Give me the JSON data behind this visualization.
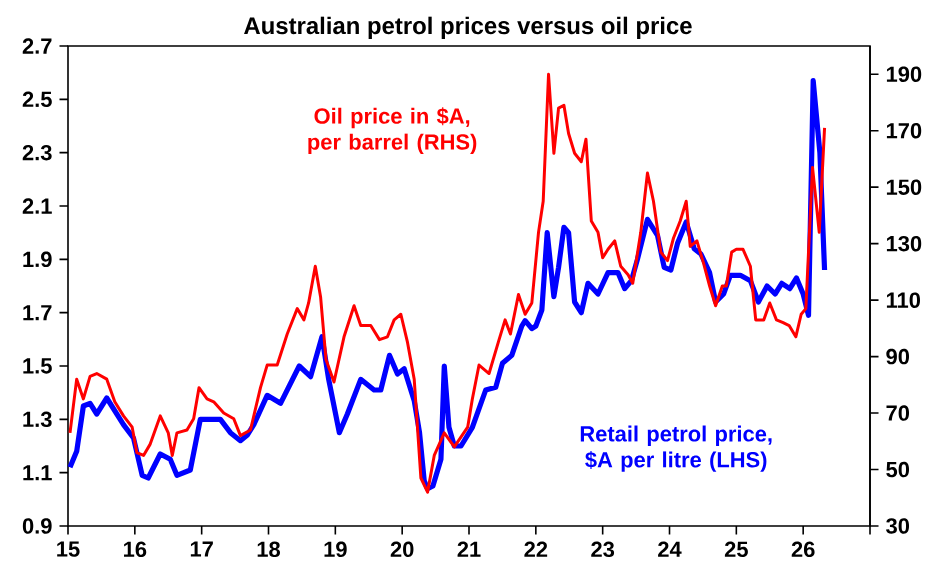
{
  "chart_data": {
    "type": "line",
    "title": "Australian petrol prices versus oil price",
    "xlim": [
      15,
      27
    ],
    "xticks": [
      15,
      16,
      17,
      18,
      19,
      20,
      21,
      22,
      23,
      24,
      25,
      26,
      {
        "value": 27,
        "label": null
      }
    ],
    "ylim": [
      0.9,
      2.7
    ],
    "yticks": [
      0.9,
      1.1,
      1.3,
      1.5,
      1.7,
      1.9,
      2.1,
      2.3,
      2.5,
      2.7
    ],
    "y2lim": [
      30,
      200
    ],
    "y2ticks": [
      30,
      50,
      70,
      90,
      110,
      130,
      150,
      170,
      190
    ],
    "grid": false,
    "series": [
      {
        "name": "Retail petrol price, $A per litre (LHS)",
        "color": "#0000ff",
        "axis": "y",
        "x": [
          15.03,
          15.13,
          15.23,
          15.33,
          15.43,
          15.58,
          15.83,
          15.98,
          16.11,
          16.2,
          16.38,
          16.53,
          16.63,
          16.83,
          16.98,
          17.18,
          17.28,
          17.43,
          17.58,
          17.68,
          17.78,
          17.98,
          18.18,
          18.46,
          18.63,
          18.8,
          18.9,
          19.06,
          19.18,
          19.38,
          19.58,
          19.68,
          19.81,
          19.93,
          20.03,
          20.18,
          20.26,
          20.33,
          20.38,
          20.46,
          20.58,
          20.63,
          20.7,
          20.78,
          20.88,
          21.05,
          21.25,
          21.4,
          21.5,
          21.64,
          21.79,
          21.84,
          21.94,
          22.0,
          22.09,
          22.17,
          22.27,
          22.34,
          22.42,
          22.49,
          22.58,
          22.68,
          22.78,
          22.93,
          23.08,
          23.23,
          23.33,
          23.43,
          23.52,
          23.67,
          23.82,
          23.92,
          24.02,
          24.12,
          24.25,
          24.37,
          24.47,
          24.6,
          24.69,
          24.81,
          24.91,
          25.06,
          25.21,
          25.33,
          25.46,
          25.58,
          25.68,
          25.8,
          25.9,
          26.0,
          26.08,
          26.15,
          26.25,
          26.32
        ],
        "values": [
          1.12,
          1.18,
          1.35,
          1.36,
          1.32,
          1.38,
          1.28,
          1.23,
          1.09,
          1.08,
          1.17,
          1.15,
          1.09,
          1.11,
          1.3,
          1.3,
          1.3,
          1.25,
          1.22,
          1.24,
          1.28,
          1.39,
          1.36,
          1.5,
          1.46,
          1.61,
          1.45,
          1.25,
          1.32,
          1.45,
          1.41,
          1.41,
          1.54,
          1.47,
          1.49,
          1.37,
          1.25,
          1.07,
          1.04,
          1.05,
          1.15,
          1.5,
          1.27,
          1.2,
          1.2,
          1.27,
          1.41,
          1.42,
          1.51,
          1.54,
          1.65,
          1.67,
          1.64,
          1.65,
          1.71,
          2.0,
          1.76,
          1.87,
          2.02,
          2.0,
          1.74,
          1.7,
          1.81,
          1.77,
          1.85,
          1.85,
          1.79,
          1.82,
          1.9,
          2.05,
          1.99,
          1.87,
          1.86,
          1.96,
          2.04,
          1.94,
          1.92,
          1.85,
          1.74,
          1.77,
          1.84,
          1.84,
          1.82,
          1.74,
          1.8,
          1.77,
          1.81,
          1.79,
          1.83,
          1.77,
          1.69,
          2.57,
          2.3,
          1.86
        ]
      },
      {
        "name": "Oil price in $A, per barrel (RHS)",
        "color": "#ff0000",
        "axis": "y2",
        "x": [
          15.03,
          15.13,
          15.23,
          15.33,
          15.43,
          15.58,
          15.7,
          15.83,
          15.96,
          16.03,
          16.13,
          16.23,
          16.38,
          16.5,
          16.56,
          16.63,
          16.78,
          16.88,
          16.96,
          17.08,
          17.18,
          17.33,
          17.48,
          17.58,
          17.73,
          17.88,
          17.98,
          18.13,
          18.28,
          18.43,
          18.53,
          18.6,
          18.7,
          18.78,
          18.86,
          18.98,
          19.13,
          19.28,
          19.38,
          19.53,
          19.66,
          19.78,
          19.88,
          19.98,
          20.08,
          20.18,
          20.28,
          20.38,
          20.48,
          20.63,
          20.78,
          20.98,
          21.05,
          21.15,
          21.3,
          21.45,
          21.54,
          21.62,
          21.74,
          21.84,
          21.94,
          22.04,
          22.11,
          22.19,
          22.27,
          22.34,
          22.42,
          22.49,
          22.58,
          22.68,
          22.75,
          22.83,
          22.93,
          23.0,
          23.08,
          23.18,
          23.27,
          23.38,
          23.45,
          23.57,
          23.67,
          23.76,
          23.87,
          23.97,
          24.06,
          24.16,
          24.25,
          24.31,
          24.41,
          24.51,
          24.6,
          24.69,
          24.79,
          24.85,
          24.93,
          25.0,
          25.1,
          25.21,
          25.29,
          25.41,
          25.5,
          25.6,
          25.7,
          25.79,
          25.89,
          25.97,
          26.04,
          26.14,
          26.24,
          26.32
        ],
        "values": [
          63,
          82,
          75,
          83,
          84,
          82,
          74,
          69,
          65,
          56,
          55,
          59,
          69,
          63,
          55,
          63,
          64,
          68,
          79,
          75,
          74,
          70,
          68,
          62,
          64,
          79,
          87,
          87,
          98,
          107,
          103,
          109,
          122,
          111,
          89,
          81,
          97,
          108,
          101,
          101,
          96,
          97,
          103,
          105,
          95,
          82,
          47,
          42,
          55,
          63,
          58,
          65,
          75,
          87,
          84,
          96,
          103,
          98,
          112,
          105,
          109,
          134,
          145,
          190,
          162,
          178,
          179,
          169,
          162,
          159,
          167,
          138,
          134,
          125,
          128,
          131,
          122,
          119,
          116,
          134,
          155,
          145,
          127,
          124,
          132,
          138,
          145,
          129,
          131,
          123,
          115,
          108,
          115,
          115,
          127,
          128,
          128,
          122,
          103,
          103,
          109,
          103,
          102,
          101,
          97,
          105,
          107,
          157,
          134,
          171
        ]
      }
    ]
  }
}
